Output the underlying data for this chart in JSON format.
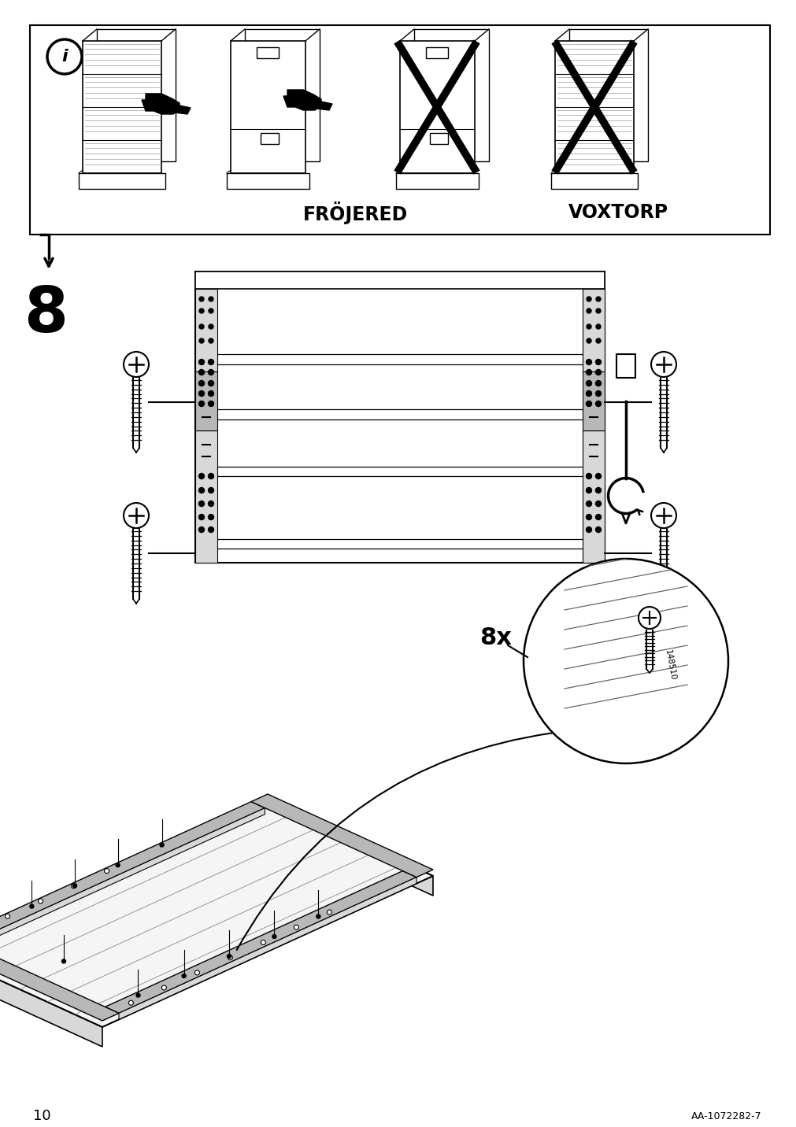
{
  "bg_color": "#ffffff",
  "line_color": "#000000",
  "page_number": "10",
  "doc_number": "AA-1072282-7",
  "step_number": "8",
  "screw_count": "8x",
  "part_number": "148510",
  "frojered_label": "FRÖJERED",
  "voxtorp_label": "VOXTORP",
  "gray_light": "#d8d8d8",
  "gray_mid": "#b8b8b8",
  "gray_dark": "#989898"
}
